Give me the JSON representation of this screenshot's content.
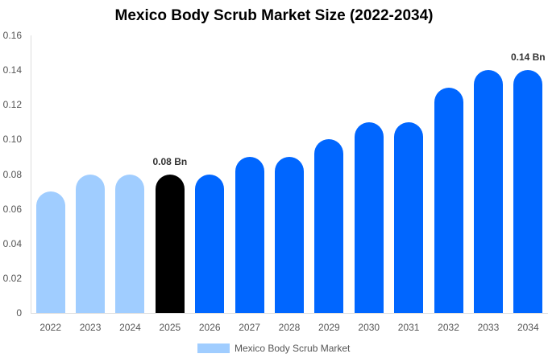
{
  "chart_data": {
    "type": "bar",
    "title": "Mexico Body Scrub Market Size (2022-2034)",
    "xlabel": "",
    "ylabel": "",
    "ylim": [
      0,
      0.16
    ],
    "yticks": [
      "0",
      "0.02",
      "0.04",
      "0.06",
      "0.08",
      "0.10",
      "0.12",
      "0.14",
      "0.16"
    ],
    "categories": [
      "2022",
      "2023",
      "2024",
      "2025",
      "2026",
      "2027",
      "2028",
      "2029",
      "2030",
      "2031",
      "2032",
      "2033",
      "2034"
    ],
    "series": [
      {
        "name": "Mexico Body Scrub Market",
        "values": [
          0.07,
          0.08,
          0.08,
          0.08,
          0.08,
          0.09,
          0.09,
          0.1,
          0.11,
          0.11,
          0.13,
          0.14,
          0.14
        ]
      }
    ],
    "bar_colors": [
      "#a0cdff",
      "#a0cdff",
      "#a0cdff",
      "#000000",
      "#0066ff",
      "#0066ff",
      "#0066ff",
      "#0066ff",
      "#0066ff",
      "#0066ff",
      "#0066ff",
      "#0066ff",
      "#0066ff"
    ],
    "annotations": [
      {
        "category": "2025",
        "text": "0.08 Bn"
      },
      {
        "category": "2034",
        "text": "0.14 Bn"
      }
    ],
    "legend": {
      "position": "bottom",
      "entries": [
        {
          "label": "Mexico Body Scrub Market",
          "color": "#a0cdff"
        }
      ]
    },
    "grid": false
  }
}
